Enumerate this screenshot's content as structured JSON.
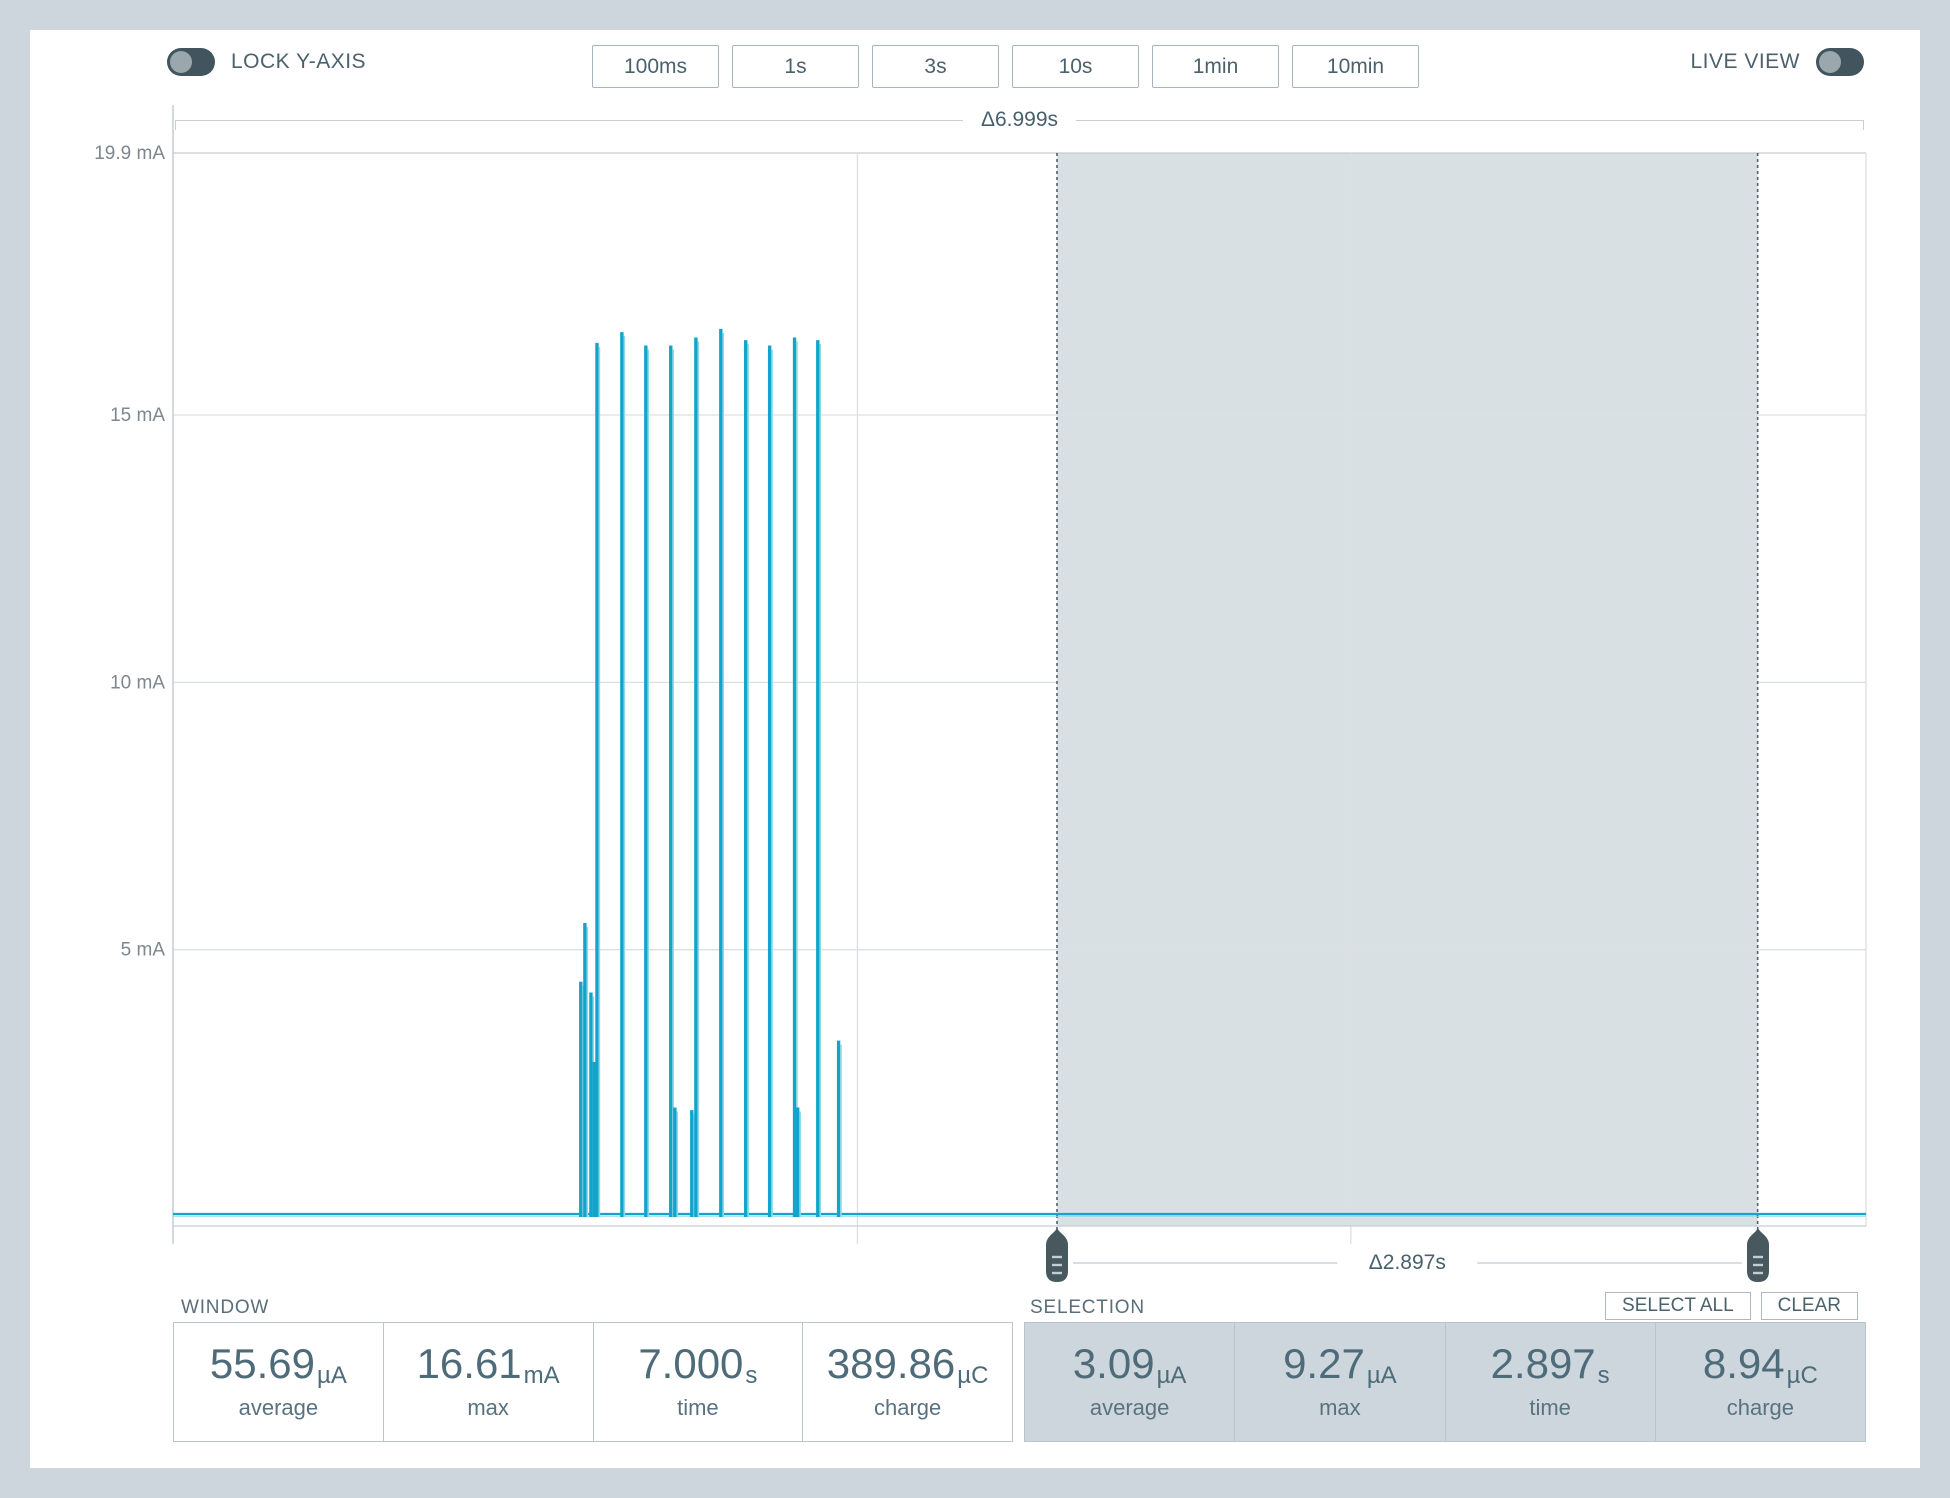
{
  "toolbar": {
    "lock_y_axis_label": "LOCK Y-AXIS",
    "live_view_label": "LIVE VIEW",
    "lock_y_axis_on": false,
    "live_view_on": false,
    "window_buttons": [
      "100ms",
      "1s",
      "3s",
      "10s",
      "1min",
      "10min"
    ]
  },
  "chart_data": {
    "type": "line",
    "description": "Current (mA) vs time: flat ~0 baseline with a burst of periodic tall spikes",
    "y_ticks": [
      {
        "mA": 19.9,
        "label": "19.9 mA"
      },
      {
        "mA": 15,
        "label": "15 mA"
      },
      {
        "mA": 10,
        "label": "10 mA"
      },
      {
        "mA": 5,
        "label": "5 mA"
      }
    ],
    "y_top_mA": 19.9,
    "x_range_s": [
      0,
      7.0
    ],
    "window_delta_label": "Δ6.999s",
    "baseline_mA": 0.056,
    "x_gridlines_t": [
      2.83,
      4.87
    ],
    "spikes": [
      {
        "t": 1.686,
        "mA": 4.4
      },
      {
        "t": 1.703,
        "mA": 5.5
      },
      {
        "t": 1.728,
        "mA": 4.2
      },
      {
        "t": 1.742,
        "mA": 2.9
      },
      {
        "t": 1.753,
        "mA": 16.35
      },
      {
        "t": 1.856,
        "mA": 16.55
      },
      {
        "t": 1.955,
        "mA": 16.3
      },
      {
        "t": 2.058,
        "mA": 16.3
      },
      {
        "t": 2.075,
        "mA": 2.05
      },
      {
        "t": 2.145,
        "mA": 2.0
      },
      {
        "t": 2.162,
        "mA": 16.45
      },
      {
        "t": 2.265,
        "mA": 16.61
      },
      {
        "t": 2.368,
        "mA": 16.4
      },
      {
        "t": 2.467,
        "mA": 16.3
      },
      {
        "t": 2.57,
        "mA": 16.45
      },
      {
        "t": 2.583,
        "mA": 2.05
      },
      {
        "t": 2.666,
        "mA": 16.4
      },
      {
        "t": 2.752,
        "mA": 3.3
      }
    ],
    "selection": {
      "t_start": 3.655,
      "t_end": 6.552,
      "delta_label": "Δ2.897s"
    },
    "colors": {
      "trace": "#12a4c9",
      "trace_light": "#8fd9ea",
      "selection_fill": "rgba(168,186,196,0.45)",
      "selection_edge": "#51626c",
      "handle": "#47585f",
      "gridline": "#dcdfe2",
      "axis": "#c6cdd1",
      "axis_label": "#7e878d"
    }
  },
  "window_stats": {
    "title": "WINDOW",
    "stats": [
      {
        "value": "55.69",
        "unit": "µA",
        "label": "average"
      },
      {
        "value": "16.61",
        "unit": "mA",
        "label": "max"
      },
      {
        "value": "7.000",
        "unit": "s",
        "label": "time"
      },
      {
        "value": "389.86",
        "unit": "µC",
        "label": "charge"
      }
    ]
  },
  "selection_stats": {
    "title": "SELECTION",
    "select_all_label": "SELECT ALL",
    "clear_label": "CLEAR",
    "stats": [
      {
        "value": "3.09",
        "unit": "µA",
        "label": "average"
      },
      {
        "value": "9.27",
        "unit": "µA",
        "label": "max"
      },
      {
        "value": "2.897",
        "unit": "s",
        "label": "time"
      },
      {
        "value": "8.94",
        "unit": "µC",
        "label": "charge"
      }
    ]
  }
}
